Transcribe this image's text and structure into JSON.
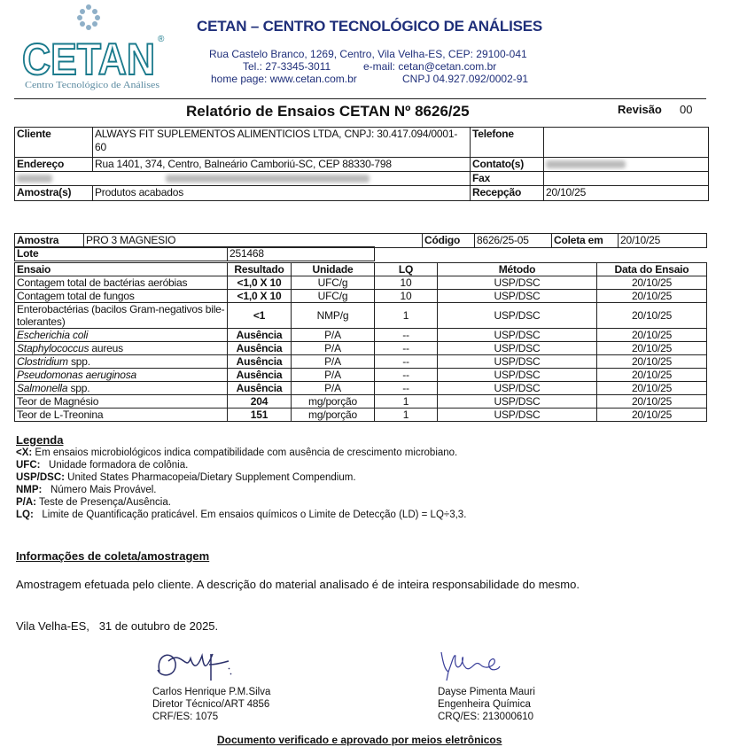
{
  "logo": {
    "text": "CETAN",
    "subtitle": "Centro Tecnológico de Análises",
    "registered": "®"
  },
  "header": {
    "title": "CETAN – CENTRO TECNOLÓGICO DE ANÁLISES",
    "address": "Rua Castelo Branco, 1269, Centro, Vila Velha-ES, CEP: 29100-041",
    "phone": "Tel.: 27-3345-3011",
    "email": "e-mail: cetan@cetan.com.br",
    "homepage": "home page: www.cetan.com.br",
    "cnpj": "CNPJ 04.927.092/0002-91"
  },
  "report": {
    "title": "Relatório de Ensaios CETAN Nº 8626/25",
    "revision_label": "Revisão",
    "revision": "00"
  },
  "client": {
    "cliente_label": "Cliente",
    "cliente": "ALWAYS FIT SUPLEMENTOS ALIMENTICIOS LTDA, CNPJ: 30.417.094/0001-60",
    "telefone_label": "Telefone",
    "endereco_label": "Endereço",
    "endereco": "Rua 1401, 374, Centro, Balneário Camboriú-SC, CEP 88330-798",
    "contato_label": "Contato(s)",
    "fax_label": "Fax",
    "amostras_label": "Amostra(s)",
    "amostras": "Produtos acabados",
    "recepcao_label": "Recepção",
    "recepcao": "20/10/25"
  },
  "sample": {
    "amostra_label": "Amostra",
    "amostra": "PRO 3 MAGNESIO",
    "codigo_label": "Código",
    "codigo": "8626/25-05",
    "coleta_label": "Coleta em",
    "coleta": "20/10/25",
    "lote_label": "Lote",
    "lote": "251468"
  },
  "tests": {
    "headers": [
      "Ensaio",
      "Resultado",
      "Unidade",
      "LQ",
      "Método",
      "Data do Ensaio"
    ],
    "rows": [
      {
        "ensaio": "Contagem total de bactérias aeróbias",
        "resultado": "<1,0 X 10",
        "unidade": "UFC/g",
        "lq": "10",
        "metodo": "USP/DSC",
        "data": "20/10/25"
      },
      {
        "ensaio": "Contagem total de fungos",
        "resultado": "<1,0 X 10",
        "unidade": "UFC/g",
        "lq": "10",
        "metodo": "USP/DSC",
        "data": "20/10/25"
      },
      {
        "ensaio": "Enterobactérias (bacilos Gram-negativos bile-tolerantes)",
        "resultado": "<1",
        "unidade": "NMP/g",
        "lq": "1",
        "metodo": "USP/DSC",
        "data": "20/10/25"
      },
      {
        "ensaio_italic": "Escherichia coli",
        "ensaio": "",
        "resultado": "Ausência",
        "unidade": "P/A",
        "lq": "--",
        "metodo": "USP/DSC",
        "data": "20/10/25"
      },
      {
        "ensaio_italic": "Staphylococcus",
        "ensaio": " aureus",
        "resultado": "Ausência",
        "unidade": "P/A",
        "lq": "--",
        "metodo": "USP/DSC",
        "data": "20/10/25"
      },
      {
        "ensaio_italic": "Clostridium",
        "ensaio": " spp.",
        "resultado": "Ausência",
        "unidade": "P/A",
        "lq": "--",
        "metodo": "USP/DSC",
        "data": "20/10/25"
      },
      {
        "ensaio_italic": "Pseudomonas aeruginosa",
        "ensaio": "",
        "resultado": "Ausência",
        "unidade": "P/A",
        "lq": "--",
        "metodo": "USP/DSC",
        "data": "20/10/25"
      },
      {
        "ensaio_italic": "Salmonella",
        "ensaio": " spp.",
        "resultado": "Ausência",
        "unidade": "P/A",
        "lq": "--",
        "metodo": "USP/DSC",
        "data": "20/10/25"
      },
      {
        "ensaio": "Teor de Magnésio",
        "resultado": "204",
        "unidade": "mg/porção",
        "lq": "1",
        "metodo": "USP/DSC",
        "data": "20/10/25"
      },
      {
        "ensaio": "Teor de L-Treonina",
        "resultado": "151",
        "unidade": "mg/porção",
        "lq": "1",
        "metodo": "USP/DSC",
        "data": "20/10/25"
      }
    ]
  },
  "legend": {
    "title": "Legenda",
    "items": [
      {
        "key": "<X:",
        "text": " Em ensaios microbiológicos indica compatibilidade com ausência de crescimento microbiano."
      },
      {
        "key": "UFC:",
        "text": "   Unidade formadora de colônia."
      },
      {
        "key": "USP/DSC:",
        "text": " United States Pharmacopeia/Dietary Supplement Compendium."
      },
      {
        "key": "NMP:",
        "text": "   Número Mais Provável."
      },
      {
        "key": "P/A:",
        "text": " Teste de Presença/Ausência."
      },
      {
        "key": "LQ:",
        "text": "   Limite de Quantificação praticável. Em ensaios químicos o Limite de Detecção (LD) = LQ÷3,3."
      }
    ]
  },
  "collection": {
    "title": "Informações de coleta/amostragem",
    "text": "Amostragem efetuada pelo cliente. A descrição do material analisado é de inteira responsabilidade do mesmo."
  },
  "place_date": "Vila Velha-ES,   31 de outubro de 2025.",
  "signatories": [
    {
      "name": "Carlos Henrique P.M.Silva",
      "role": "Diretor Técnico/ART 4856",
      "reg": "CRF/ES: 1075"
    },
    {
      "name": "Dayse Pimenta Mauri",
      "role": "Engenheira Química",
      "reg": "CRQ/ES: 213000610"
    }
  ],
  "footer": "Documento verificado e aprovado por meios eletrônicos",
  "colors": {
    "brand": "#1f2f7a",
    "logo": "#1a7a8c"
  }
}
